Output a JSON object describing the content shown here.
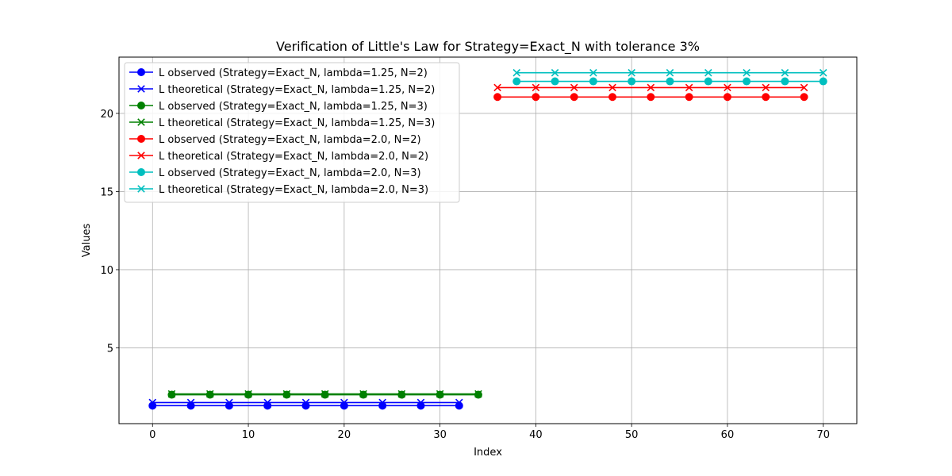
{
  "chart_data": {
    "type": "line",
    "title": "Verification of Little's Law for Strategy=Exact_N with tolerance 3%",
    "xlabel": "Index",
    "ylabel": "Values",
    "xlim": [
      -3.5,
      73.5
    ],
    "ylim": [
      0.15,
      23.6
    ],
    "xticks": [
      0,
      10,
      20,
      30,
      40,
      50,
      60,
      70
    ],
    "yticks": [
      5,
      10,
      15,
      20
    ],
    "grid": true,
    "legend_position": "upper-left",
    "series": [
      {
        "name": "L observed (Strategy=Exact_N, lambda=1.25, N=2)",
        "color": "#0000ff",
        "marker": "o",
        "x": [
          0,
          4,
          8,
          12,
          16,
          20,
          24,
          28,
          32
        ],
        "y": [
          1.3,
          1.3,
          1.3,
          1.3,
          1.3,
          1.3,
          1.3,
          1.3,
          1.3
        ]
      },
      {
        "name": "L theoretical (Strategy=Exact_N, lambda=1.25, N=2)",
        "color": "#0000ff",
        "marker": "x",
        "x": [
          0,
          4,
          8,
          12,
          16,
          20,
          24,
          28,
          32
        ],
        "y": [
          1.5,
          1.5,
          1.5,
          1.5,
          1.5,
          1.5,
          1.5,
          1.5,
          1.5
        ]
      },
      {
        "name": "L observed (Strategy=Exact_N, lambda=1.25, N=3)",
        "color": "#008000",
        "marker": "o",
        "x": [
          2,
          6,
          10,
          14,
          18,
          22,
          26,
          30,
          34
        ],
        "y": [
          2.0,
          2.0,
          2.0,
          2.0,
          2.0,
          2.0,
          2.0,
          2.0,
          2.0
        ]
      },
      {
        "name": "L theoretical (Strategy=Exact_N, lambda=1.25, N=3)",
        "color": "#008000",
        "marker": "x",
        "x": [
          2,
          6,
          10,
          14,
          18,
          22,
          26,
          30,
          34
        ],
        "y": [
          2.05,
          2.05,
          2.05,
          2.05,
          2.05,
          2.05,
          2.05,
          2.05,
          2.05
        ]
      },
      {
        "name": "L observed (Strategy=Exact_N, lambda=2.0, N=2)",
        "color": "#ff0000",
        "marker": "o",
        "x": [
          36,
          40,
          44,
          48,
          52,
          56,
          60,
          64,
          68
        ],
        "y": [
          21.05,
          21.05,
          21.05,
          21.05,
          21.05,
          21.05,
          21.05,
          21.05,
          21.05
        ]
      },
      {
        "name": "L theoretical (Strategy=Exact_N, lambda=2.0, N=2)",
        "color": "#ff0000",
        "marker": "x",
        "x": [
          36,
          40,
          44,
          48,
          52,
          56,
          60,
          64,
          68
        ],
        "y": [
          21.65,
          21.65,
          21.65,
          21.65,
          21.65,
          21.65,
          21.65,
          21.65,
          21.65
        ]
      },
      {
        "name": "L observed (Strategy=Exact_N, lambda=2.0, N=3)",
        "color": "#00bfbf",
        "marker": "o",
        "x": [
          38,
          42,
          46,
          50,
          54,
          58,
          62,
          66,
          70
        ],
        "y": [
          22.05,
          22.05,
          22.05,
          22.05,
          22.05,
          22.05,
          22.05,
          22.05,
          22.05
        ]
      },
      {
        "name": "L theoretical (Strategy=Exact_N, lambda=2.0, N=3)",
        "color": "#00bfbf",
        "marker": "x",
        "x": [
          38,
          42,
          46,
          50,
          54,
          58,
          62,
          66,
          70
        ],
        "y": [
          22.6,
          22.6,
          22.6,
          22.6,
          22.6,
          22.6,
          22.6,
          22.6,
          22.6
        ]
      }
    ]
  }
}
